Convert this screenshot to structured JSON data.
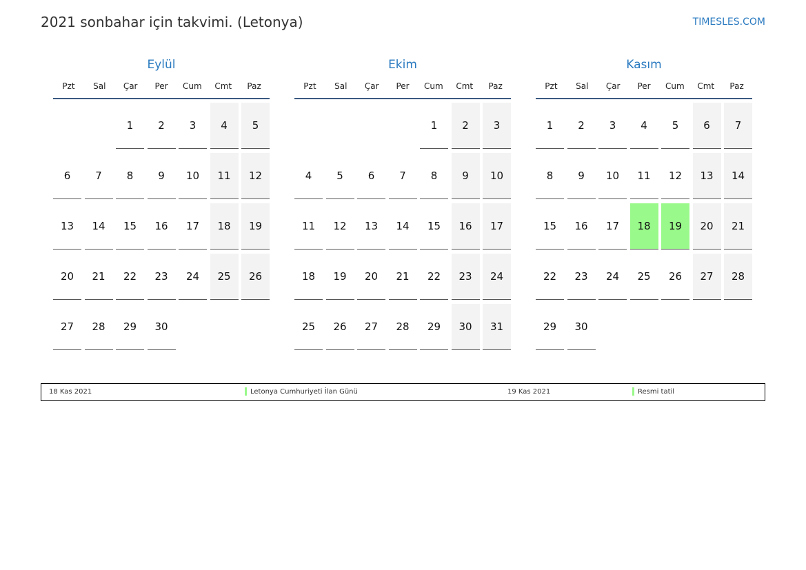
{
  "title": "2021 sonbahar için takvimi. (Letonya)",
  "brand": "TIMESLES.COM",
  "weekdays": [
    "Pzt",
    "Sal",
    "Çar",
    "Per",
    "Cum",
    "Cmt",
    "Paz"
  ],
  "months": [
    {
      "name": "Eylül",
      "first_weekday_offset": 2,
      "days": 30,
      "holidays": []
    },
    {
      "name": "Ekim",
      "first_weekday_offset": 4,
      "days": 31,
      "holidays": []
    },
    {
      "name": "Kasım",
      "first_weekday_offset": 0,
      "days": 30,
      "holidays": [
        18,
        19
      ]
    }
  ],
  "colors": {
    "accent": "#2a7ac0",
    "weekend": "#f3f3f3",
    "holiday": "#99f98a"
  },
  "legend": [
    {
      "date": "18 Kas 2021",
      "name": "Letonya Cumhuriyeti İlan Günü"
    },
    {
      "date": "19 Kas 2021",
      "name": "Resmi tatil"
    }
  ]
}
